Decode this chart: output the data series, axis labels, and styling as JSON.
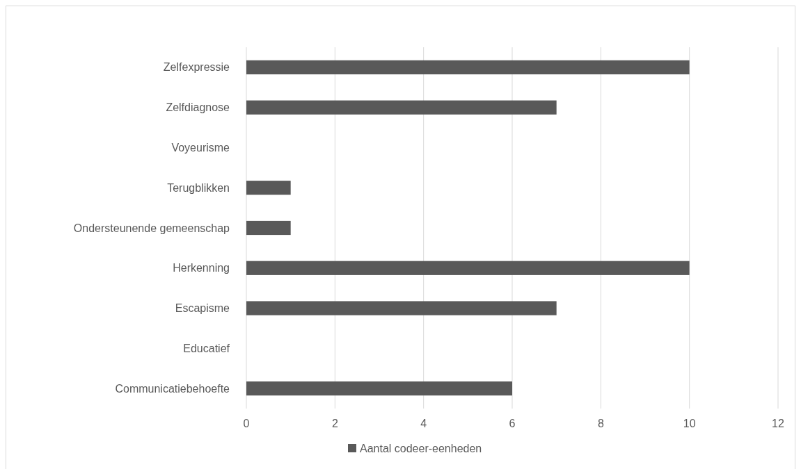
{
  "chart_data": {
    "type": "bar",
    "orientation": "horizontal",
    "categories": [
      "Zelfexpressie",
      "Zelfdiagnose",
      "Voyeurisme",
      "Terugblikken",
      "Ondersteunende gemeenschap",
      "Herkenning",
      "Escapisme",
      "Educatief",
      "Communicatiebehoefte"
    ],
    "series": [
      {
        "name": "Aantal codeer-eenheden",
        "color": "#595959",
        "values": [
          10,
          7,
          0,
          1,
          1,
          10,
          7,
          0,
          6
        ]
      }
    ],
    "xlim": [
      0,
      12
    ],
    "xticks": [
      0,
      2,
      4,
      6,
      8,
      10,
      12
    ],
    "grid": "x",
    "legend": "bottom"
  }
}
